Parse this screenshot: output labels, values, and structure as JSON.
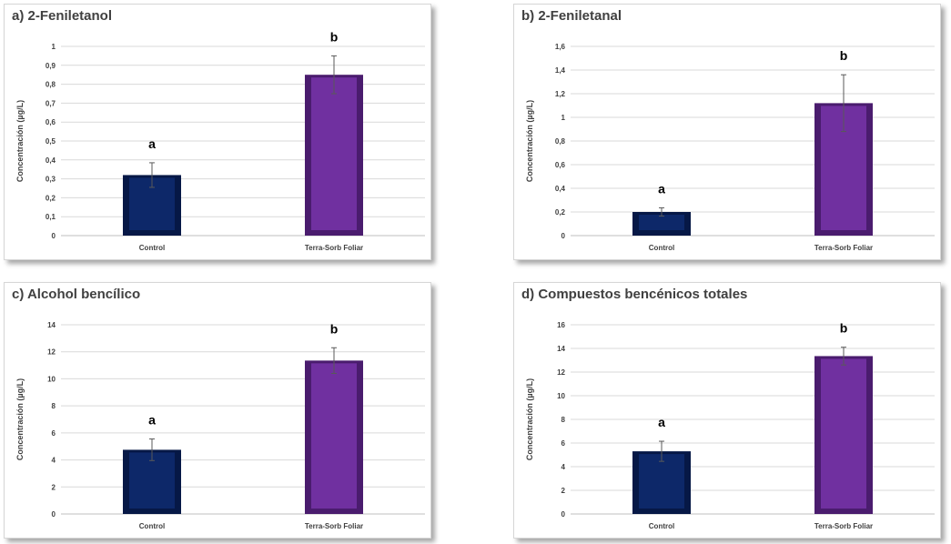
{
  "chart_data": [
    {
      "type": "bar",
      "title": "a) 2-Feniletanol",
      "ylabel": "Concentración  (µg/L)",
      "xlabel": "",
      "categories": [
        "Control",
        "Terra-Sorb Foliar"
      ],
      "values": [
        0.32,
        0.85
      ],
      "errors": [
        0.065,
        0.1
      ],
      "letters": [
        "a",
        "b"
      ],
      "ylim": [
        0,
        1
      ],
      "yticks": [
        0,
        0.1,
        0.2,
        0.3,
        0.4,
        0.5,
        0.6,
        0.7,
        0.8,
        0.9,
        1
      ],
      "ytick_labels": [
        "0",
        "0,1",
        "0,2",
        "0,3",
        "0,4",
        "0,5",
        "0,6",
        "0,7",
        "0,8",
        "0,9",
        "1"
      ],
      "grid": true
    },
    {
      "type": "bar",
      "title": "b) 2-Feniletanal",
      "ylabel": "Concentración  (µg/L)",
      "xlabel": "",
      "categories": [
        "Control",
        "Terra-Sorb Foliar"
      ],
      "values": [
        0.2,
        1.12
      ],
      "errors": [
        0.035,
        0.24
      ],
      "letters": [
        "a",
        "b"
      ],
      "ylim": [
        0,
        1.6
      ],
      "yticks": [
        0,
        0.2,
        0.4,
        0.6,
        0.8,
        1,
        1.2,
        1.4,
        1.6
      ],
      "ytick_labels": [
        "0",
        "0,2",
        "0,4",
        "0,6",
        "0,8",
        "1",
        "1,2",
        "1,4",
        "1,6"
      ],
      "grid": true
    },
    {
      "type": "bar",
      "title": "c) Alcohol bencílico",
      "ylabel": "Concentración  (µg/L)",
      "xlabel": "",
      "categories": [
        "Control",
        "Terra-Sorb Foliar"
      ],
      "values": [
        4.75,
        11.35
      ],
      "errors": [
        0.8,
        0.95
      ],
      "letters": [
        "a",
        "b"
      ],
      "ylim": [
        0,
        14
      ],
      "yticks": [
        0,
        2,
        4,
        6,
        8,
        10,
        12,
        14
      ],
      "ytick_labels": [
        "0",
        "2",
        "4",
        "6",
        "8",
        "10",
        "12",
        "14"
      ],
      "grid": true
    },
    {
      "type": "bar",
      "title": "d) Compuestos bencénicos totales",
      "ylabel": "Concentración  (µg/L)",
      "xlabel": "",
      "categories": [
        "Control",
        "Terra-Sorb Foliar"
      ],
      "values": [
        5.3,
        13.35
      ],
      "errors": [
        0.85,
        0.75
      ],
      "letters": [
        "a",
        "b"
      ],
      "ylim": [
        0,
        16
      ],
      "yticks": [
        0,
        2,
        4,
        6,
        8,
        10,
        12,
        14,
        16
      ],
      "ytick_labels": [
        "0",
        "2",
        "4",
        "6",
        "8",
        "10",
        "12",
        "14",
        "16"
      ],
      "grid": true
    }
  ],
  "colors": {
    "control": "#0d2869",
    "control_dark": "#061846",
    "treatment": "#7030a0",
    "treatment_dark": "#4a1c6e",
    "grid": "#d9d9d9",
    "text": "#404040"
  }
}
